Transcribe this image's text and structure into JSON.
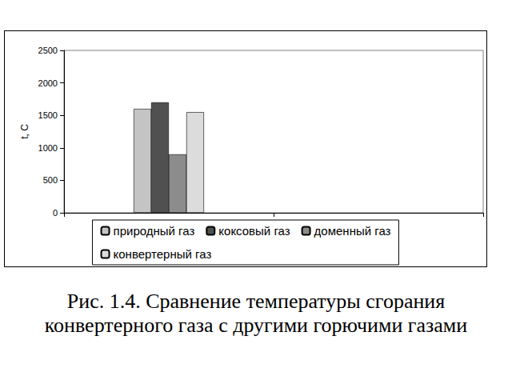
{
  "chart_data": {
    "type": "bar",
    "title": "Рис. 1.4. Сравнение температуры сгорания конвертерного газа с другими горючими газами",
    "y_label": "t, С",
    "categories": [
      null,
      null
    ],
    "series": [
      {
        "name": "природный газ",
        "color": "#c4c4c4",
        "values": [
          1600,
          null
        ]
      },
      {
        "name": "коксовый газ",
        "color": "#505050",
        "values": [
          1700,
          null
        ]
      },
      {
        "name": "доменный газ",
        "color": "#8c8c8c",
        "values": [
          900,
          null
        ]
      },
      {
        "name": "конвертерный газ",
        "color": "#dcdcdc",
        "values": [
          1550,
          null
        ]
      }
    ],
    "ylim": [
      0,
      2500
    ],
    "yticks": [
      0,
      500,
      1000,
      1500,
      2000,
      2500
    ],
    "grid": false,
    "legend": "bottom",
    "tick_labels": "y"
  }
}
